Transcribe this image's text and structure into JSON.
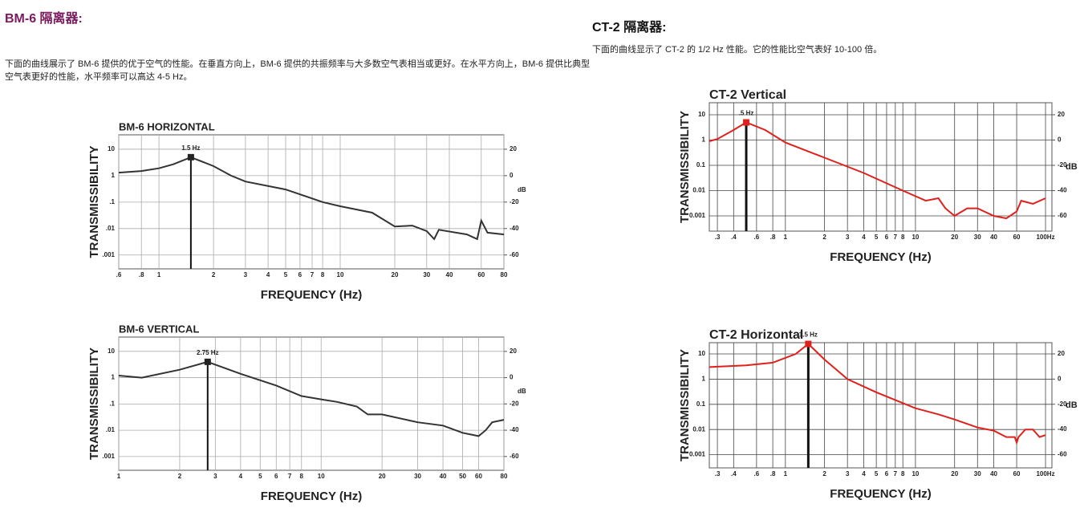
{
  "left": {
    "title": "BM-6 隔离器:",
    "text": "下面的曲线展示了 BM-6 提供的优于空气的性能。在垂直方向上，BM-6 提供的共振频率与大多数空气表相当或更好。在水平方向上，BM-6 提供比典型空气表更好的性能，水平频率可以高达 4-5 Hz。"
  },
  "right": {
    "title": "CT-2 隔离器:",
    "text": "下面的曲线显示了 CT-2 的 1/2 Hz 性能。它的性能比空气表好 10-100 倍。"
  },
  "chart_data": [
    {
      "type": "line",
      "title": "BM-6 HORIZONTAL",
      "x_label": "FREQUENCY (Hz)",
      "y_label": "TRANSMISSIBILITY",
      "y2_label": "dB",
      "log_x": true,
      "log_y": true,
      "grid": true,
      "color": "#333333",
      "x": [
        0.6,
        0.8,
        1,
        1.2,
        1.5,
        2,
        2.5,
        3,
        5,
        8,
        10,
        15,
        20,
        25,
        30,
        33,
        35,
        50,
        57,
        60,
        65,
        80
      ],
      "values": [
        1.3,
        1.5,
        1.9,
        2.7,
        5,
        2.3,
        1.0,
        0.6,
        0.3,
        0.1,
        0.07,
        0.04,
        0.012,
        0.013,
        0.008,
        0.004,
        0.009,
        0.006,
        0.004,
        0.02,
        0.007,
        0.006
      ],
      "peak": {
        "x": 1.5,
        "y": 5,
        "label": "1.5 Hz"
      },
      "xlim": [
        0.6,
        80
      ],
      "ylim": [
        0.0003,
        35
      ],
      "y2lim": [
        -70.5,
        30.9
      ],
      "xticks": [
        {
          "value": 0.6,
          "label": ".6"
        },
        {
          "value": 0.8,
          "label": ".8"
        },
        1,
        2,
        3,
        4,
        5,
        6,
        7,
        8,
        10,
        20,
        30,
        40,
        60,
        80
      ],
      "yticks": [
        10,
        1,
        {
          "value": 0.1,
          "label": ".1"
        },
        {
          "value": 0.01,
          "label": ".01"
        },
        {
          "value": 0.001,
          "label": ".001"
        }
      ],
      "y2ticks": [
        20,
        0,
        -20,
        -40,
        -60
      ]
    },
    {
      "type": "line",
      "title": "BM-6 VERTICAL",
      "x_label": "FREQUENCY (Hz)",
      "y_label": "TRANSMISSIBILITY",
      "y2_label": "dB",
      "log_x": true,
      "log_y": true,
      "grid": true,
      "color": "#333333",
      "x": [
        1,
        1.3,
        2,
        2.75,
        4,
        6,
        8,
        10,
        12,
        15,
        17,
        20,
        30,
        40,
        50,
        60,
        65,
        70,
        80
      ],
      "values": [
        1.2,
        1.0,
        2,
        4,
        1.4,
        0.5,
        0.2,
        0.15,
        0.12,
        0.08,
        0.04,
        0.04,
        0.02,
        0.015,
        0.008,
        0.006,
        0.01,
        0.02,
        0.025
      ],
      "peak": {
        "x": 2.75,
        "y": 4,
        "label": "2.75 Hz"
      },
      "xlim": [
        1,
        80
      ],
      "ylim": [
        0.0003,
        35
      ],
      "y2lim": [
        -70.5,
        30.9
      ],
      "xticks": [
        1,
        2,
        3,
        4,
        5,
        6,
        7,
        8,
        10,
        20,
        30,
        40,
        50,
        60,
        80
      ],
      "yticks": [
        10,
        1,
        {
          "value": 0.1,
          "label": ".1"
        },
        {
          "value": 0.01,
          "label": ".01"
        },
        {
          "value": 0.001,
          "label": ".001"
        }
      ],
      "y2ticks": [
        20,
        0,
        -20,
        -40,
        -60
      ]
    },
    {
      "type": "line",
      "title": "CT-2 Vertical",
      "x_label": "FREQUENCY (Hz)",
      "y_label": "TRANSMISSIBILITY",
      "y2_label": "dB",
      "log_x": true,
      "log_y": true,
      "grid": true,
      "color": "#e0201b",
      "x": [
        0.26,
        0.3,
        0.4,
        0.5,
        0.7,
        1,
        2,
        4,
        8,
        12,
        15,
        17,
        20,
        25,
        30,
        40,
        50,
        60,
        65,
        80,
        100
      ],
      "values": [
        0.9,
        1.1,
        2.5,
        5,
        2.5,
        0.8,
        0.2,
        0.05,
        0.01,
        0.004,
        0.005,
        0.002,
        0.001,
        0.002,
        0.002,
        0.001,
        0.0008,
        0.0015,
        0.004,
        0.003,
        0.005
      ],
      "peak": {
        "x": 0.5,
        "y": 5,
        "label": ".5 Hz"
      },
      "xlim": [
        0.26,
        112
      ],
      "ylim": [
        0.00025,
        30
      ],
      "y2lim": [
        -72,
        29.5
      ],
      "xticks": [
        {
          "value": 0.3,
          "label": ".3"
        },
        {
          "value": 0.4,
          "label": ".4"
        },
        {
          "value": 0.6,
          "label": ".6"
        },
        {
          "value": 0.8,
          "label": ".8"
        },
        1,
        2,
        3,
        4,
        5,
        6,
        7,
        8,
        10,
        20,
        30,
        40,
        60,
        {
          "value": 100,
          "label": "100Hz"
        }
      ],
      "yticks": [
        10,
        1,
        {
          "value": 0.1,
          "label": "0.1"
        },
        {
          "value": 0.01,
          "label": "0.01"
        },
        {
          "value": 0.001,
          "label": "0.001"
        }
      ],
      "y2ticks": [
        20,
        0,
        -20,
        -40,
        -60
      ]
    },
    {
      "type": "line",
      "title": "CT-2 Horizontal",
      "x_label": "FREQUENCY (Hz)",
      "y_label": "TRANSMISSIBILITY",
      "y2_label": "dB",
      "log_x": true,
      "log_y": true,
      "grid": true,
      "color": "#e0201b",
      "x": [
        0.26,
        0.5,
        0.8,
        1.2,
        1.5,
        2,
        3,
        5,
        10,
        15,
        20,
        30,
        40,
        50,
        58,
        60,
        62,
        70,
        80,
        90,
        100
      ],
      "values": [
        3,
        3.5,
        4.5,
        10,
        25,
        6,
        1,
        0.3,
        0.07,
        0.04,
        0.025,
        0.012,
        0.009,
        0.005,
        0.005,
        0.003,
        0.005,
        0.01,
        0.01,
        0.005,
        0.006
      ],
      "peak": {
        "x": 1.5,
        "y": 25,
        "label": "1.5 Hz"
      },
      "xlim": [
        0.26,
        112
      ],
      "ylim": [
        0.0003,
        28
      ],
      "y2lim": [
        -70.5,
        28.9
      ],
      "xticks": [
        {
          "value": 0.3,
          "label": ".3"
        },
        {
          "value": 0.4,
          "label": ".4"
        },
        {
          "value": 0.6,
          "label": ".6"
        },
        {
          "value": 0.8,
          "label": ".8"
        },
        1,
        2,
        3,
        4,
        5,
        6,
        7,
        8,
        10,
        20,
        30,
        40,
        60,
        {
          "value": 100,
          "label": "100Hz"
        }
      ],
      "yticks": [
        10,
        1,
        {
          "value": 0.1,
          "label": "0.1"
        },
        {
          "value": 0.01,
          "label": "0.01"
        },
        {
          "value": 0.001,
          "label": "0.001"
        }
      ],
      "y2ticks": [
        20,
        0,
        -20,
        -40,
        -60
      ]
    }
  ]
}
